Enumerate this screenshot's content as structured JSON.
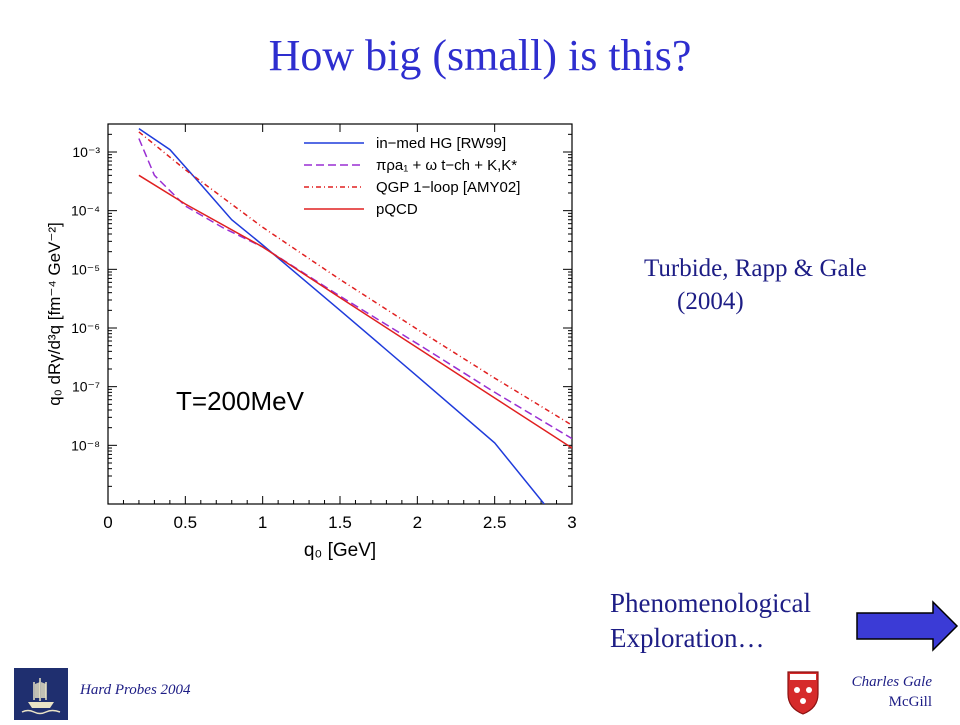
{
  "slide": {
    "title": "How big (small) is this?"
  },
  "reference": {
    "line1": "Turbide, Rapp & Gale",
    "line2": "(2004)"
  },
  "exploration": {
    "line1": "Phenomenological",
    "line2": "Exploration…"
  },
  "footer": {
    "conference": "Hard Probes 2004",
    "author": "Charles Gale",
    "institution": "McGill"
  },
  "colors": {
    "title": "#2e2ecf",
    "text": "#1d1d85",
    "arrow_fill": "#3b3bd6",
    "blue_curve": "#1f3bdb",
    "purple_curve": "#9a2fd3",
    "red_curve": "#e02020"
  },
  "icons": {
    "next": "right-arrow-icon",
    "crest": "mcgill-crest-icon",
    "ship": "ship-logo-icon"
  },
  "chart_data": {
    "type": "line",
    "ylabel": "q₀ dRγ/d³q  [fm⁻⁴ GeV⁻²]",
    "xlabel": "q₀ [GeV]",
    "annotation": "T=200MeV",
    "log_y": true,
    "xlim": [
      0,
      3
    ],
    "ylim": [
      1e-09,
      0.003
    ],
    "x_ticks": [
      0,
      0.5,
      1,
      1.5,
      2,
      2.5,
      3
    ],
    "x_tick_labels": [
      "0",
      "0.5",
      "1",
      "1.5",
      "2",
      "2.5",
      "3"
    ],
    "y_ticks": [
      1e-08,
      1e-07,
      1e-06,
      1e-05,
      0.0001,
      0.001
    ],
    "y_tick_labels": [
      "10⁻⁸",
      "10⁻⁷",
      "10⁻⁶",
      "10⁻⁵",
      "10⁻⁴",
      "10⁻³"
    ],
    "legend_position": "top-right",
    "series": [
      {
        "name": "in−med HG [RW99]",
        "color": "#1f3bdb",
        "dash": "",
        "x": [
          0.2,
          0.4,
          0.6,
          0.8,
          1.0,
          1.5,
          2.0,
          2.5,
          2.82
        ],
        "y": [
          0.0025,
          0.0011,
          0.00028,
          7e-05,
          2.6e-05,
          2e-06,
          1.5e-07,
          1.1e-08,
          1e-09
        ]
      },
      {
        "name": "πρa₁ + ω t−ch + K,K*",
        "color": "#9a2fd3",
        "dash": "8,4",
        "x": [
          0.2,
          0.3,
          0.5,
          0.75,
          1.0,
          1.5,
          2.0,
          2.5,
          3.0
        ],
        "y": [
          0.0017,
          0.0004,
          0.00012,
          5e-05,
          2.4e-05,
          3.5e-06,
          5.4e-07,
          8e-08,
          1.3e-08
        ]
      },
      {
        "name": "QGP 1−loop [AMY02]",
        "color": "#e02020",
        "dash": "5,3,1,3",
        "x": [
          0.2,
          0.5,
          1.0,
          1.5,
          2.0,
          2.5,
          3.0
        ],
        "y": [
          0.0022,
          0.0005,
          5.2e-05,
          6.7e-06,
          9.5e-07,
          1.4e-07,
          2.2e-08
        ]
      },
      {
        "name": "pQCD",
        "color": "#e02020",
        "dash": "",
        "x": [
          0.2,
          0.5,
          1.0,
          1.5,
          2.0,
          2.5,
          3.0
        ],
        "y": [
          0.0004,
          0.00013,
          2.4e-05,
          3.3e-06,
          4.6e-07,
          6.4e-08,
          9e-09
        ]
      }
    ]
  }
}
